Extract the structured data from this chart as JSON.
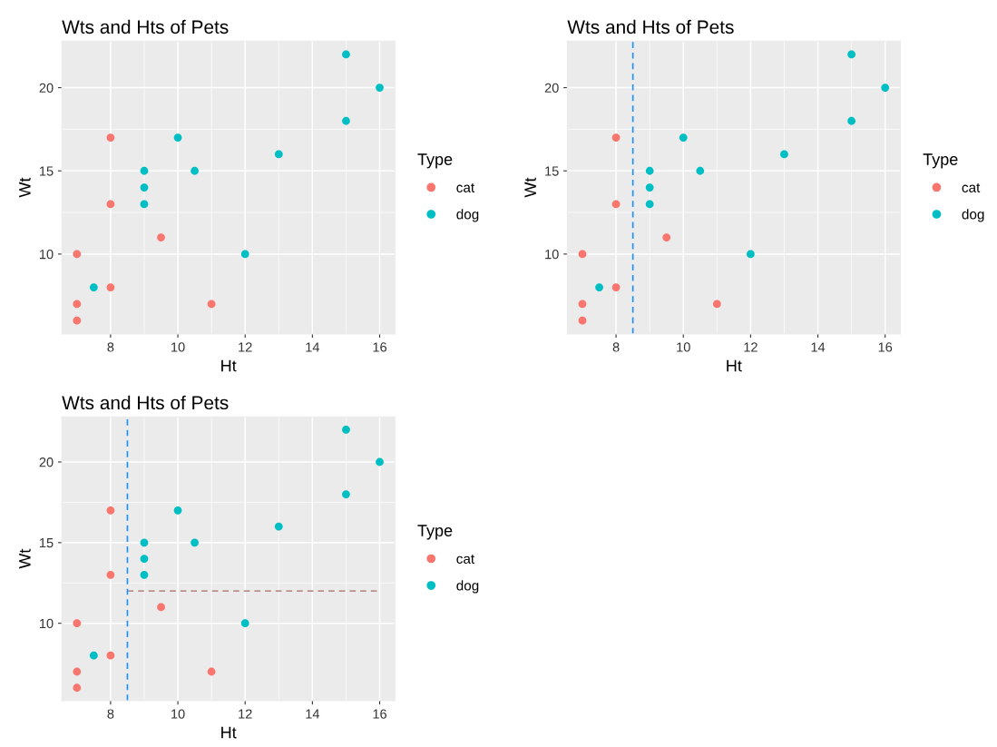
{
  "chart_data": [
    {
      "type": "scatter",
      "title": "Wts and Hts of Pets",
      "xlabel": "Ht",
      "ylabel": "Wt",
      "legend_title": "Type",
      "legend": "right",
      "grid": true,
      "marker": "circle",
      "xlim": [
        6.55,
        16.45
      ],
      "xticks": [
        8,
        10,
        12,
        14,
        16
      ],
      "ylim": [
        5.2,
        22.8
      ],
      "yticks": [
        10,
        15,
        20
      ],
      "series": [
        {
          "name": "cat",
          "color": "#f8766d",
          "x": [
            7,
            7,
            7,
            8,
            8,
            8,
            9.5,
            11
          ],
          "values": [
            10,
            7,
            6,
            17,
            13,
            8,
            11,
            7
          ]
        },
        {
          "name": "dog",
          "color": "#00bfc4",
          "x": [
            7.5,
            9,
            9,
            9,
            10,
            10.5,
            12,
            13,
            15,
            15,
            16
          ],
          "values": [
            8,
            15,
            14,
            13,
            17,
            15,
            10,
            16,
            22,
            18,
            20
          ]
        }
      ]
    },
    {
      "type": "scatter",
      "title": "Wts and Hts of Pets",
      "xlabel": "Ht",
      "ylabel": "Wt",
      "legend_title": "Type",
      "legend": "right",
      "grid": true,
      "marker": "circle",
      "xlim": [
        6.55,
        16.45
      ],
      "xticks": [
        8,
        10,
        12,
        14,
        16
      ],
      "ylim": [
        5.2,
        22.8
      ],
      "yticks": [
        10,
        15,
        20
      ],
      "series": [
        {
          "name": "cat",
          "color": "#f8766d",
          "x": [
            7,
            7,
            7,
            8,
            8,
            8,
            9.5,
            11
          ],
          "values": [
            10,
            7,
            6,
            17,
            13,
            8,
            11,
            7
          ]
        },
        {
          "name": "dog",
          "color": "#00bfc4",
          "x": [
            7.5,
            9,
            9,
            9,
            10,
            10.5,
            12,
            13,
            15,
            15,
            16
          ],
          "values": [
            8,
            15,
            14,
            13,
            17,
            15,
            10,
            16,
            22,
            18,
            20
          ]
        }
      ],
      "ref_lines": [
        {
          "axis": "x",
          "value": 8.5,
          "color": "#1e90ff",
          "line_style": "dashed"
        }
      ]
    },
    {
      "type": "scatter",
      "title": "Wts and Hts of Pets",
      "xlabel": "Ht",
      "ylabel": "Wt",
      "legend_title": "Type",
      "legend": "right",
      "grid": true,
      "marker": "circle",
      "xlim": [
        6.55,
        16.45
      ],
      "xticks": [
        8,
        10,
        12,
        14,
        16
      ],
      "ylim": [
        5.2,
        22.8
      ],
      "yticks": [
        10,
        15,
        20
      ],
      "series": [
        {
          "name": "cat",
          "color": "#f8766d",
          "x": [
            7,
            7,
            7,
            8,
            8,
            8,
            9.5,
            11
          ],
          "values": [
            10,
            7,
            6,
            17,
            13,
            8,
            11,
            7
          ]
        },
        {
          "name": "dog",
          "color": "#00bfc4",
          "x": [
            7.5,
            9,
            9,
            9,
            10,
            10.5,
            12,
            13,
            15,
            15,
            16
          ],
          "values": [
            8,
            15,
            14,
            13,
            17,
            15,
            10,
            16,
            22,
            18,
            20
          ]
        },
        {
          "type": "line",
          "color": "#bc8f8f",
          "line_style": "dashed",
          "marker": "none",
          "x": [
            8.5,
            16
          ],
          "values": [
            12,
            12
          ]
        }
      ],
      "ref_lines": [
        {
          "axis": "x",
          "value": 8.5,
          "color": "#1e90ff",
          "line_style": "dashed"
        }
      ]
    }
  ]
}
